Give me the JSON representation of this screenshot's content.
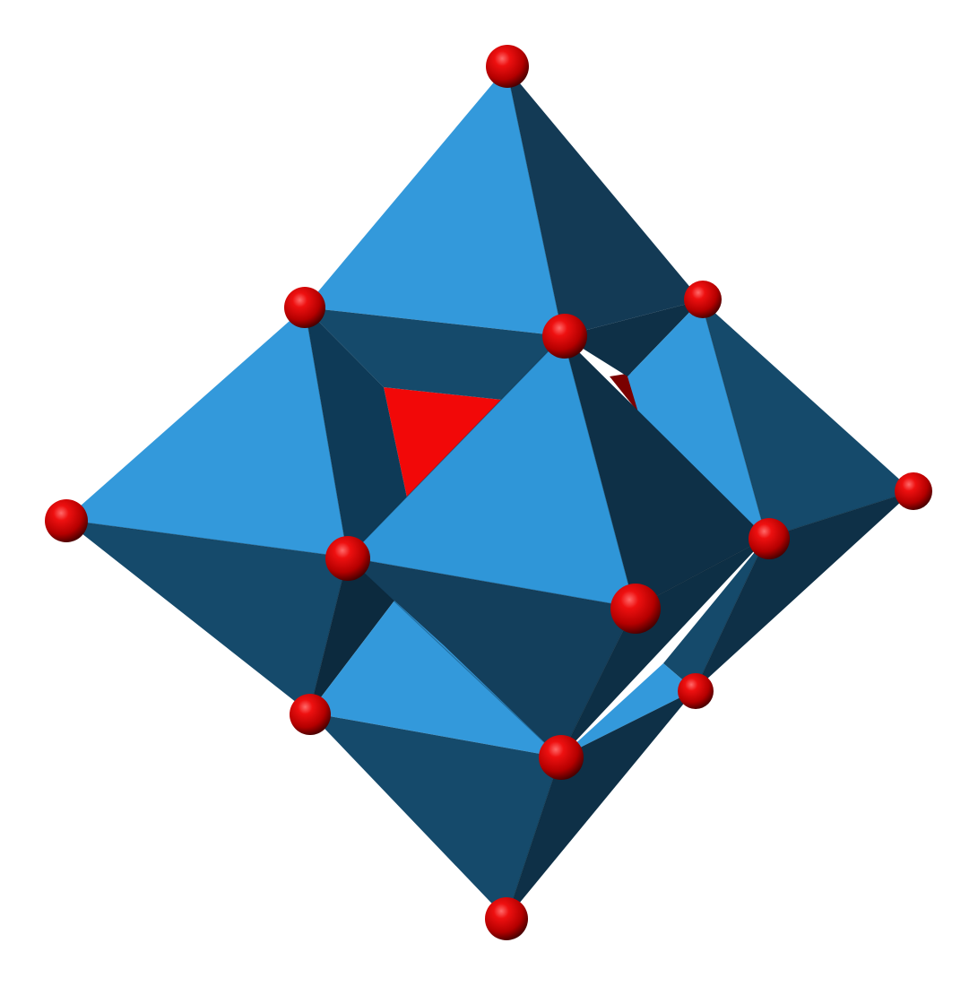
{
  "figure": {
    "subject": "polyhedral-cluster",
    "colors": {
      "face_light": "#3399db",
      "face_mid": "#154a6b",
      "face_dark": "#0e3047",
      "face_darker": "#0b2a3e",
      "inner_red": "#f20808",
      "inner_dark_red": "#780000",
      "sphere_highlight": "#ff5a5a",
      "sphere_base": "#e00000",
      "sphere_shadow": "#5a0000"
    }
  }
}
